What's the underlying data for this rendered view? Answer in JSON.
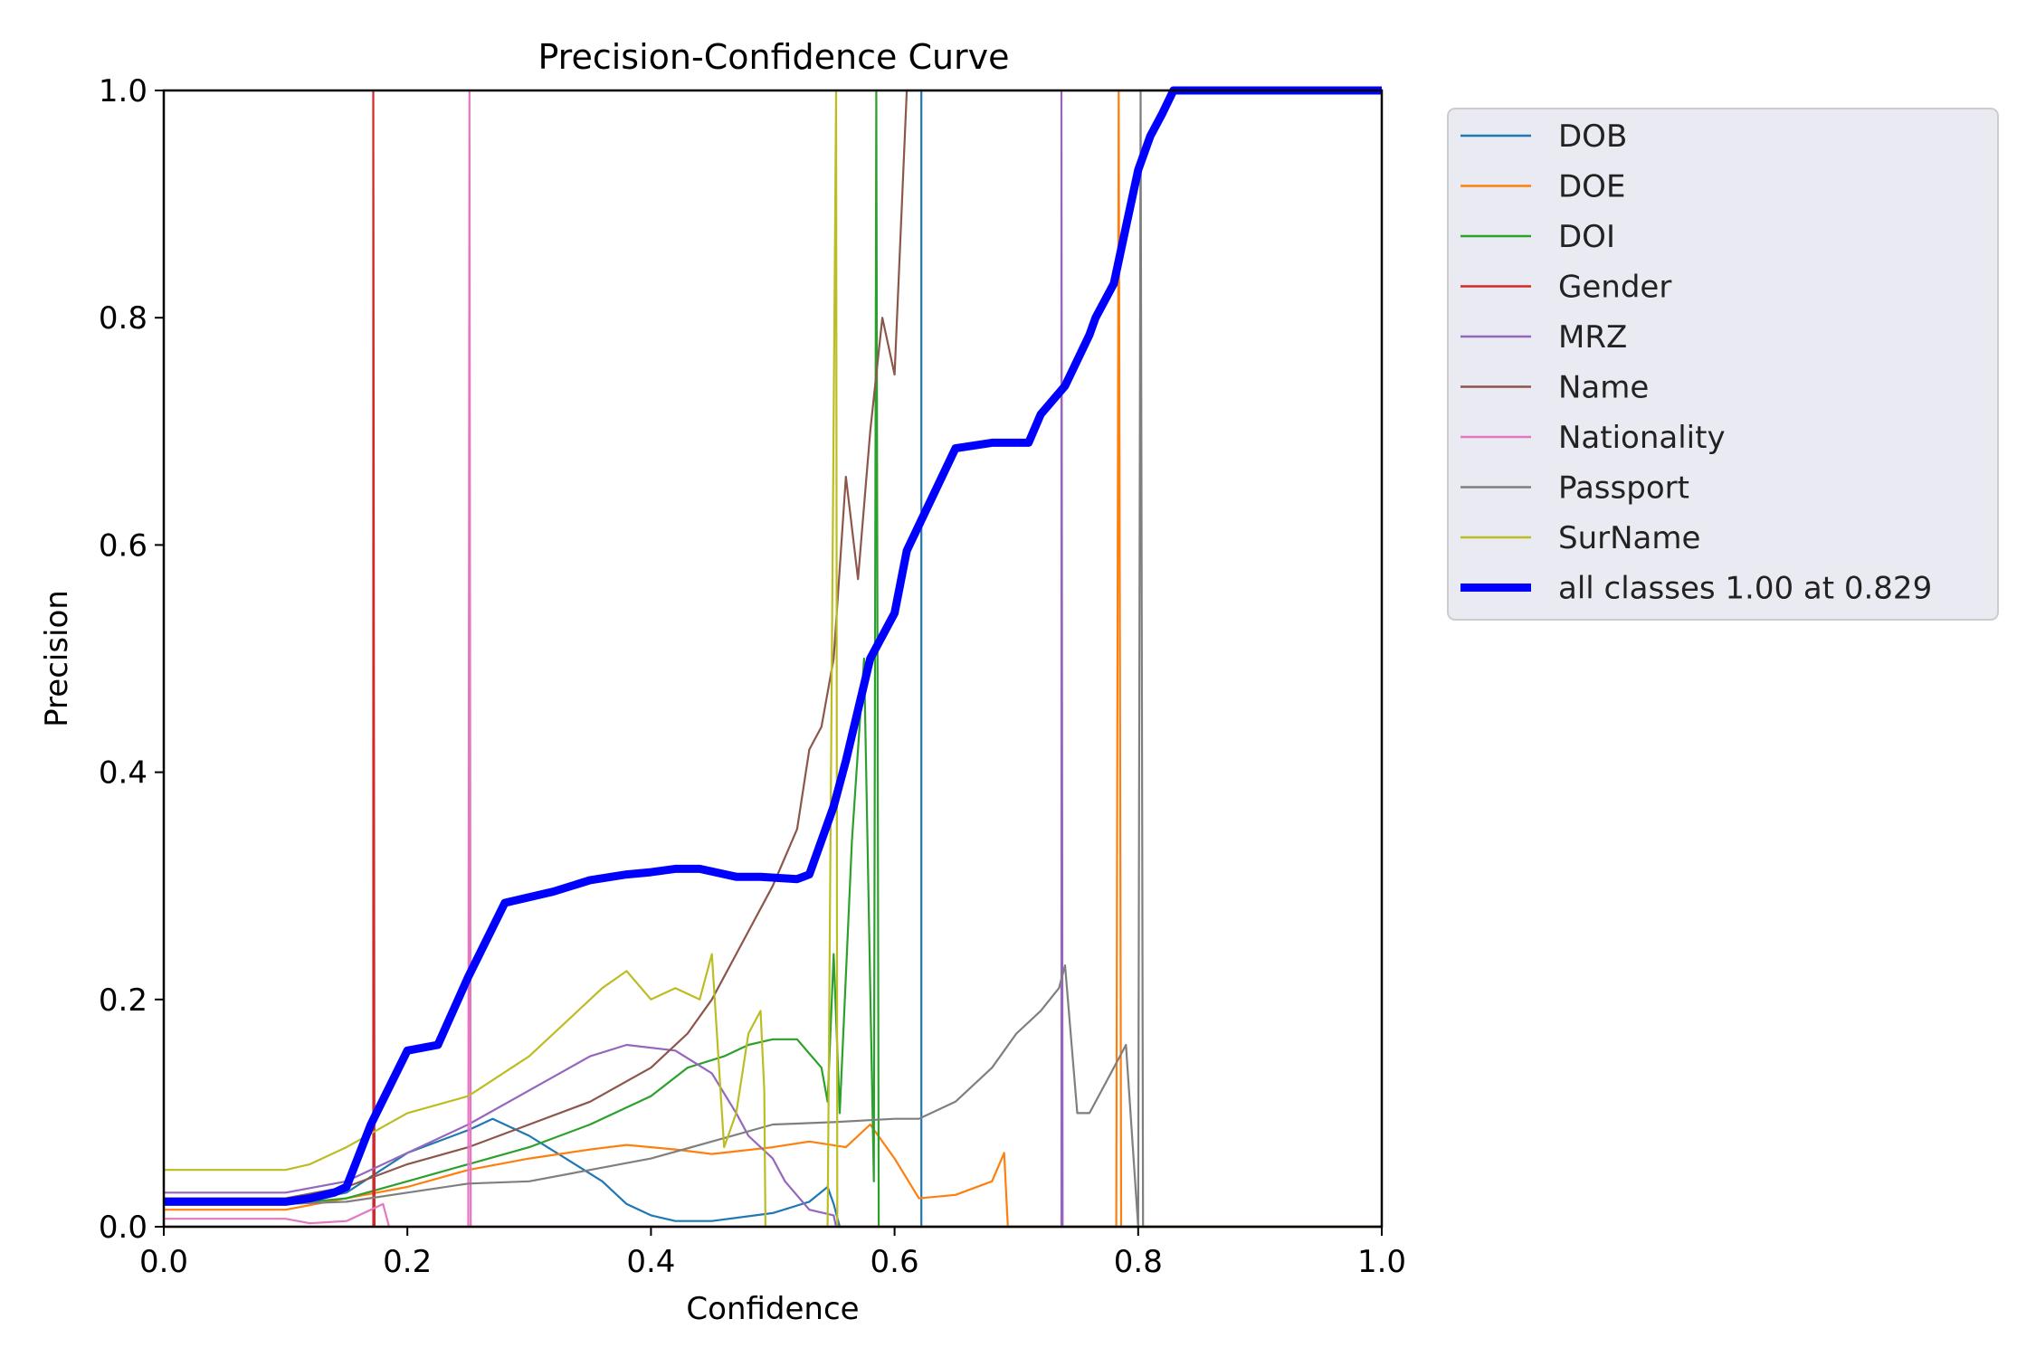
{
  "chart_data": {
    "type": "line",
    "title": "Precision-Confidence Curve",
    "xlabel": "Confidence",
    "ylabel": "Precision",
    "xlim": [
      0,
      1
    ],
    "ylim": [
      0,
      1
    ],
    "xticks": [
      "0.0",
      "0.2",
      "0.4",
      "0.6",
      "0.8",
      "1.0"
    ],
    "yticks": [
      "0.0",
      "0.2",
      "0.4",
      "0.6",
      "0.8",
      "1.0"
    ],
    "grid": false,
    "legend_position": "outside-upper-right",
    "series": [
      {
        "name": "DOB",
        "color": "#1f77b4",
        "width": "thin",
        "x": [
          0,
          0.1,
          0.15,
          0.2,
          0.25,
          0.27,
          0.3,
          0.33,
          0.36,
          0.38,
          0.4,
          0.42,
          0.45,
          0.5,
          0.53,
          0.545,
          0.55,
          0.555,
          0.622,
          0.622,
          0.622,
          1.0
        ],
        "y": [
          0.02,
          0.02,
          0.03,
          0.065,
          0.085,
          0.095,
          0.08,
          0.06,
          0.04,
          0.02,
          0.01,
          0.005,
          0.005,
          0.012,
          0.022,
          0.035,
          0.02,
          0.0,
          0.0,
          1.0,
          0.0,
          0.0
        ]
      },
      {
        "name": "DOE",
        "color": "#ff7f0e",
        "width": "thin",
        "x": [
          0,
          0.1,
          0.15,
          0.2,
          0.25,
          0.3,
          0.35,
          0.38,
          0.42,
          0.45,
          0.5,
          0.53,
          0.56,
          0.58,
          0.6,
          0.62,
          0.65,
          0.68,
          0.69,
          0.693,
          0.7,
          0.782,
          0.784,
          0.786,
          1.0
        ],
        "y": [
          0.015,
          0.015,
          0.025,
          0.035,
          0.05,
          0.06,
          0.068,
          0.072,
          0.068,
          0.064,
          0.07,
          0.075,
          0.07,
          0.09,
          0.06,
          0.025,
          0.028,
          0.04,
          0.065,
          0.0,
          0.0,
          0.0,
          1.0,
          0.0,
          0.0
        ]
      },
      {
        "name": "DOI",
        "color": "#2ca02c",
        "width": "thin",
        "x": [
          0,
          0.1,
          0.15,
          0.2,
          0.25,
          0.3,
          0.35,
          0.4,
          0.43,
          0.46,
          0.48,
          0.5,
          0.52,
          0.54,
          0.545,
          0.55,
          0.555,
          0.565,
          0.575,
          0.583,
          0.585,
          0.587,
          1.0
        ],
        "y": [
          0.02,
          0.02,
          0.025,
          0.04,
          0.055,
          0.07,
          0.09,
          0.115,
          0.14,
          0.15,
          0.16,
          0.165,
          0.165,
          0.14,
          0.11,
          0.24,
          0.1,
          0.34,
          0.5,
          0.04,
          1.0,
          0.0,
          0.0
        ]
      },
      {
        "name": "Gender",
        "color": "#d62728",
        "width": "thin",
        "x": [
          0,
          0.172,
          0.172,
          0.173,
          1.0
        ],
        "y": [
          0.0,
          0.0,
          1.0,
          0.0,
          0.0
        ]
      },
      {
        "name": "MRZ",
        "color": "#9467bd",
        "width": "thin",
        "x": [
          0,
          0.1,
          0.15,
          0.2,
          0.25,
          0.3,
          0.35,
          0.38,
          0.42,
          0.45,
          0.47,
          0.48,
          0.5,
          0.51,
          0.53,
          0.55,
          0.552,
          0.737,
          0.737,
          0.738,
          1.0
        ],
        "y": [
          0.03,
          0.03,
          0.04,
          0.065,
          0.09,
          0.12,
          0.15,
          0.16,
          0.155,
          0.135,
          0.1,
          0.08,
          0.06,
          0.04,
          0.015,
          0.01,
          0.0,
          0.0,
          1.0,
          0.0,
          0.0
        ]
      },
      {
        "name": "Name",
        "color": "#8c564b",
        "width": "thin",
        "x": [
          0,
          0.1,
          0.15,
          0.2,
          0.25,
          0.3,
          0.35,
          0.4,
          0.43,
          0.45,
          0.47,
          0.5,
          0.52,
          0.53,
          0.54,
          0.55,
          0.56,
          0.57,
          0.58,
          0.59,
          0.6,
          0.61,
          1.0
        ],
        "y": [
          0.025,
          0.025,
          0.035,
          0.055,
          0.07,
          0.09,
          0.11,
          0.14,
          0.17,
          0.2,
          0.24,
          0.3,
          0.35,
          0.42,
          0.44,
          0.5,
          0.66,
          0.57,
          0.7,
          0.8,
          0.75,
          1.0,
          1.0
        ]
      },
      {
        "name": "Nationality",
        "color": "#e377c2",
        "width": "thin",
        "x": [
          0,
          0.1,
          0.12,
          0.15,
          0.17,
          0.18,
          0.185,
          0.186,
          0.25,
          0.251,
          0.252,
          1.0
        ],
        "y": [
          0.007,
          0.007,
          0.003,
          0.005,
          0.015,
          0.02,
          0.0,
          0.0,
          0.0,
          1.0,
          0.0,
          0.0
        ]
      },
      {
        "name": "Passport",
        "color": "#7f7f7f",
        "width": "thin",
        "x": [
          0,
          0.1,
          0.15,
          0.2,
          0.25,
          0.3,
          0.35,
          0.4,
          0.45,
          0.5,
          0.55,
          0.6,
          0.62,
          0.65,
          0.68,
          0.7,
          0.72,
          0.735,
          0.74,
          0.75,
          0.76,
          0.78,
          0.79,
          0.8,
          0.802,
          0.804,
          1.0
        ],
        "y": [
          0.02,
          0.02,
          0.022,
          0.03,
          0.038,
          0.04,
          0.05,
          0.06,
          0.075,
          0.09,
          0.092,
          0.095,
          0.095,
          0.11,
          0.14,
          0.17,
          0.19,
          0.21,
          0.23,
          0.1,
          0.1,
          0.14,
          0.16,
          0.0,
          1.0,
          0.0,
          0.0
        ]
      },
      {
        "name": "SurName",
        "color": "#bcbd22",
        "width": "thin",
        "x": [
          0,
          0.1,
          0.12,
          0.15,
          0.2,
          0.25,
          0.3,
          0.33,
          0.36,
          0.38,
          0.4,
          0.42,
          0.44,
          0.45,
          0.46,
          0.47,
          0.48,
          0.49,
          0.493,
          0.494,
          0.495,
          0.545,
          0.552,
          0.553,
          0.555,
          1.0
        ],
        "y": [
          0.05,
          0.05,
          0.055,
          0.07,
          0.1,
          0.115,
          0.15,
          0.18,
          0.21,
          0.225,
          0.2,
          0.21,
          0.2,
          0.24,
          0.07,
          0.1,
          0.17,
          0.19,
          0.12,
          0.0,
          0.0,
          0.0,
          1.0,
          0.0,
          0.0,
          0.0
        ]
      },
      {
        "name": "all classes 1.00 at 0.829",
        "color": "#0000ff",
        "width": "thick",
        "x": [
          0,
          0.1,
          0.12,
          0.14,
          0.15,
          0.17,
          0.2,
          0.225,
          0.25,
          0.28,
          0.32,
          0.35,
          0.38,
          0.4,
          0.42,
          0.44,
          0.47,
          0.49,
          0.52,
          0.53,
          0.55,
          0.56,
          0.58,
          0.6,
          0.61,
          0.63,
          0.65,
          0.68,
          0.71,
          0.72,
          0.74,
          0.76,
          0.765,
          0.78,
          0.79,
          0.8,
          0.81,
          0.82,
          0.829,
          1.0
        ],
        "y": [
          0.022,
          0.022,
          0.025,
          0.03,
          0.035,
          0.09,
          0.155,
          0.16,
          0.22,
          0.285,
          0.295,
          0.305,
          0.31,
          0.312,
          0.315,
          0.315,
          0.308,
          0.308,
          0.306,
          0.31,
          0.37,
          0.41,
          0.5,
          0.54,
          0.595,
          0.64,
          0.685,
          0.69,
          0.69,
          0.715,
          0.74,
          0.785,
          0.8,
          0.83,
          0.88,
          0.93,
          0.96,
          0.98,
          1.0,
          1.0
        ]
      }
    ]
  }
}
